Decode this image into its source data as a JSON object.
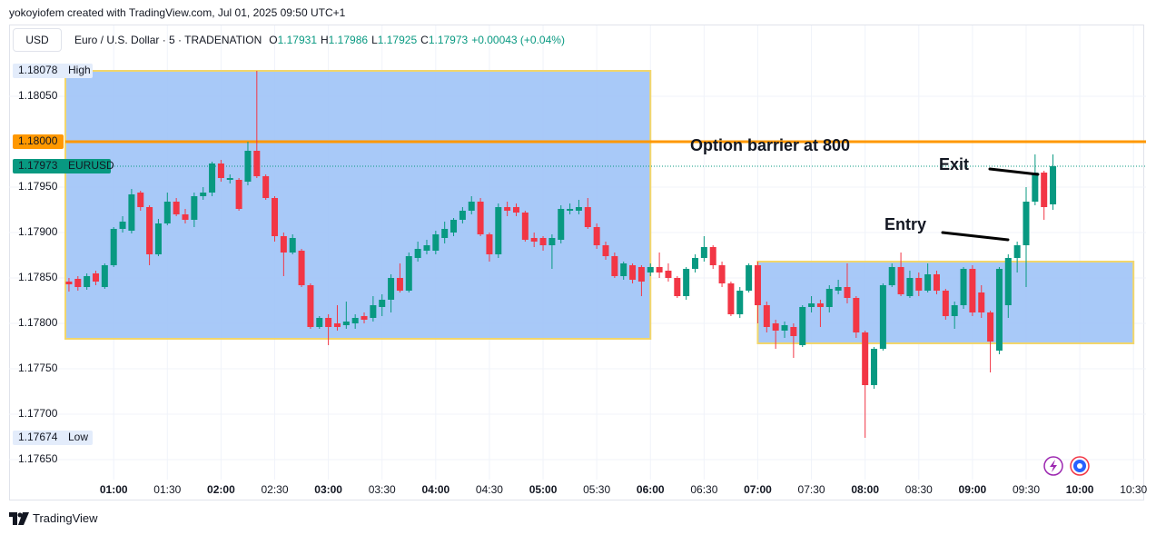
{
  "header": {
    "attribution": "yokoyiofem created with TradingView.com, Jul 01, 2025 09:50 UTC+1"
  },
  "toolbar": {
    "currency": "USD",
    "symbol": "Euro / U.S. Dollar · 5 · TRADENATION",
    "ohlc": [
      {
        "key": "O",
        "value": "1.17931"
      },
      {
        "key": "H",
        "value": "1.17986"
      },
      {
        "key": "L",
        "value": "1.17925"
      },
      {
        "key": "C",
        "value": "1.17973"
      }
    ],
    "change": "+0.00043 (+0.04%)"
  },
  "chart_data": {
    "type": "candlestick",
    "x": [
      35,
      40,
      45,
      50,
      55,
      60,
      65,
      70,
      75,
      80,
      85,
      90,
      95,
      100,
      105,
      110,
      115,
      120,
      125,
      130,
      135,
      140,
      145,
      150,
      155,
      160,
      165,
      170,
      175,
      180,
      185,
      190,
      195,
      200,
      205,
      210,
      215,
      220,
      225,
      230,
      235,
      240,
      245,
      250,
      255,
      260,
      265,
      270,
      275,
      280,
      285,
      290,
      295,
      300,
      305,
      310,
      315,
      320,
      325,
      330,
      335,
      340,
      345,
      350,
      355,
      360,
      365,
      370,
      375,
      380,
      385,
      390,
      395,
      400,
      405,
      410,
      415,
      420,
      425,
      430,
      435,
      440,
      445,
      450,
      455,
      460,
      465,
      470,
      475,
      480,
      485,
      490,
      495,
      500,
      505,
      510,
      515,
      520,
      525,
      530,
      535,
      540,
      545,
      550,
      555,
      560,
      565,
      570,
      575,
      580,
      585
    ],
    "series": [
      {
        "name": "EURUSD",
        "open": [
          1.17846,
          1.17849,
          1.1784,
          1.17855,
          1.1784,
          1.17864,
          1.17904,
          1.17902,
          1.17944,
          1.17928,
          1.17876,
          1.1791,
          1.17934,
          1.1792,
          1.17914,
          1.1794,
          1.17944,
          1.17976,
          1.17958,
          1.17958,
          1.17956,
          1.1799,
          1.17962,
          1.17938,
          1.17896,
          1.17878,
          1.1788,
          1.17842,
          1.17796,
          1.17806,
          1.178,
          1.17798,
          1.178,
          1.17808,
          1.17806,
          1.17818,
          1.17826,
          1.1785,
          1.17836,
          1.17872,
          1.1788,
          1.1788,
          1.17894,
          1.179,
          1.17914,
          1.17924,
          1.17934,
          1.17898,
          1.17876,
          1.17928,
          1.17928,
          1.17922,
          1.17894,
          1.17894,
          1.17886,
          1.17892,
          1.17924,
          1.17924,
          1.17928,
          1.17906,
          1.17886,
          1.17874,
          1.17852,
          1.17864,
          1.17862,
          1.17856,
          1.17862,
          1.17858,
          1.1785,
          1.1783,
          1.1786,
          1.17872,
          1.17884,
          1.17864,
          1.17844,
          1.1781,
          1.17836,
          1.17864,
          1.1782,
          1.178,
          1.17792,
          1.17796,
          1.17776,
          1.17818,
          1.17822,
          1.17818,
          1.17836,
          1.1784,
          1.17828,
          1.1779,
          1.17732,
          1.17772,
          1.17842,
          1.17862,
          1.1783,
          1.1785,
          1.17836,
          1.17854,
          1.17836,
          1.17808,
          1.1782,
          1.1786,
          1.17834,
          1.17812,
          1.1777,
          1.1782,
          1.17872,
          1.17886,
          1.17934,
          1.17966,
          1.17931
        ],
        "high": [
          1.1785,
          1.17852,
          1.17855,
          1.17858,
          1.17866,
          1.17906,
          1.17918,
          1.17948,
          1.17946,
          1.1793,
          1.17915,
          1.17944,
          1.17938,
          1.17926,
          1.17944,
          1.1795,
          1.17978,
          1.1798,
          1.17964,
          1.1796,
          1.18,
          1.18078,
          1.17964,
          1.1794,
          1.179,
          1.17898,
          1.17882,
          1.17844,
          1.17808,
          1.1781,
          1.1782,
          1.17824,
          1.1781,
          1.17812,
          1.1783,
          1.17832,
          1.17854,
          1.17866,
          1.17878,
          1.1789,
          1.17892,
          1.17902,
          1.17912,
          1.17916,
          1.17928,
          1.1794,
          1.17938,
          1.179,
          1.17932,
          1.17934,
          1.17932,
          1.17924,
          1.179,
          1.17896,
          1.17898,
          1.1793,
          1.17932,
          1.17936,
          1.17938,
          1.1791,
          1.1789,
          1.17878,
          1.17868,
          1.17866,
          1.17864,
          1.17866,
          1.17878,
          1.17866,
          1.17852,
          1.17862,
          1.17876,
          1.17896,
          1.17886,
          1.17868,
          1.17846,
          1.1784,
          1.17866,
          1.17868,
          1.17824,
          1.17804,
          1.17802,
          1.178,
          1.1782,
          1.1783,
          1.17826,
          1.17842,
          1.17848,
          1.17866,
          1.1783,
          1.17792,
          1.17774,
          1.17844,
          1.17866,
          1.17878,
          1.17858,
          1.17856,
          1.17866,
          1.17858,
          1.17838,
          1.17824,
          1.17862,
          1.17864,
          1.17842,
          1.17814,
          1.17862,
          1.17876,
          1.1789,
          1.1795,
          1.17986,
          1.17968,
          1.17986
        ],
        "low": [
          1.17835,
          1.17836,
          1.17837,
          1.17842,
          1.17838,
          1.17862,
          1.179,
          1.17899,
          1.17924,
          1.17864,
          1.17874,
          1.17908,
          1.17918,
          1.1791,
          1.17906,
          1.17936,
          1.1794,
          1.17956,
          1.17954,
          1.17924,
          1.17952,
          1.1796,
          1.17936,
          1.1789,
          1.17852,
          1.17876,
          1.1784,
          1.17794,
          1.17794,
          1.17776,
          1.17792,
          1.17794,
          1.17794,
          1.178,
          1.17802,
          1.17808,
          1.17812,
          1.17834,
          1.17834,
          1.17868,
          1.17876,
          1.17876,
          1.17888,
          1.17896,
          1.1791,
          1.1792,
          1.17896,
          1.17868,
          1.17872,
          1.17918,
          1.17918,
          1.1789,
          1.17884,
          1.1788,
          1.1786,
          1.17888,
          1.1792,
          1.1792,
          1.17904,
          1.17882,
          1.1787,
          1.1785,
          1.17848,
          1.17844,
          1.1783,
          1.17852,
          1.1785,
          1.17846,
          1.17828,
          1.17826,
          1.17856,
          1.17868,
          1.1786,
          1.1784,
          1.17808,
          1.17806,
          1.17834,
          1.178,
          1.1779,
          1.17772,
          1.17784,
          1.17762,
          1.17774,
          1.17812,
          1.17796,
          1.17812,
          1.17832,
          1.17822,
          1.17784,
          1.17674,
          1.17728,
          1.1777,
          1.1784,
          1.1783,
          1.17828,
          1.1783,
          1.17834,
          1.17832,
          1.17804,
          1.17794,
          1.17816,
          1.17808,
          1.17806,
          1.17746,
          1.17766,
          1.17806,
          1.17856,
          1.1784,
          1.1793,
          1.17914,
          1.17925
        ],
        "close": [
          1.17843,
          1.1784,
          1.17852,
          1.17846,
          1.17864,
          1.17904,
          1.17912,
          1.17942,
          1.17928,
          1.17876,
          1.1791,
          1.17934,
          1.1792,
          1.17914,
          1.1794,
          1.17944,
          1.17976,
          1.1796,
          1.1796,
          1.17926,
          1.1799,
          1.17962,
          1.17938,
          1.17896,
          1.17878,
          1.17894,
          1.17842,
          1.17796,
          1.17806,
          1.17796,
          1.17796,
          1.17802,
          1.17806,
          1.17804,
          1.1782,
          1.17826,
          1.1785,
          1.17836,
          1.17874,
          1.17882,
          1.17886,
          1.17898,
          1.17904,
          1.17914,
          1.17924,
          1.17934,
          1.17898,
          1.17876,
          1.17928,
          1.17924,
          1.17922,
          1.17892,
          1.1789,
          1.17886,
          1.17894,
          1.17926,
          1.17926,
          1.17928,
          1.17906,
          1.17886,
          1.17874,
          1.17852,
          1.17866,
          1.17848,
          1.17846,
          1.17862,
          1.17856,
          1.1785,
          1.1783,
          1.1786,
          1.17872,
          1.17884,
          1.17864,
          1.17844,
          1.1781,
          1.17836,
          1.17864,
          1.1782,
          1.17796,
          1.17792,
          1.17798,
          1.17786,
          1.17818,
          1.17822,
          1.17818,
          1.17838,
          1.1784,
          1.17828,
          1.1779,
          1.17732,
          1.17772,
          1.17842,
          1.17862,
          1.17832,
          1.1785,
          1.17836,
          1.17854,
          1.17836,
          1.17808,
          1.1782,
          1.1786,
          1.17812,
          1.17812,
          1.1778,
          1.1786,
          1.17872,
          1.17886,
          1.17934,
          1.17966,
          1.17928,
          1.17973
        ]
      }
    ],
    "up_color": "#089981",
    "down_color": "#f23645",
    "xlim": [
      33,
      637
    ],
    "ylim": [
      1.17631,
      1.18096
    ],
    "xticks": [
      {
        "value": 60,
        "label": "01:00"
      },
      {
        "value": 90,
        "label": "01:30"
      },
      {
        "value": 120,
        "label": "02:00"
      },
      {
        "value": 150,
        "label": "02:30"
      },
      {
        "value": 180,
        "label": "03:00"
      },
      {
        "value": 210,
        "label": "03:30"
      },
      {
        "value": 240,
        "label": "04:00"
      },
      {
        "value": 270,
        "label": "04:30"
      },
      {
        "value": 300,
        "label": "05:00"
      },
      {
        "value": 330,
        "label": "05:30"
      },
      {
        "value": 360,
        "label": "06:00"
      },
      {
        "value": 390,
        "label": "06:30"
      },
      {
        "value": 420,
        "label": "07:00"
      },
      {
        "value": 450,
        "label": "07:30"
      },
      {
        "value": 480,
        "label": "08:00"
      },
      {
        "value": 510,
        "label": "08:30"
      },
      {
        "value": 540,
        "label": "09:00"
      },
      {
        "value": 570,
        "label": "09:30"
      },
      {
        "value": 600,
        "label": "10:00"
      },
      {
        "value": 630,
        "label": "10:30"
      }
    ],
    "yticks": [
      {
        "value": 1.1805,
        "label": "1.18050"
      },
      {
        "value": 1.1795,
        "label": "1.17950"
      },
      {
        "value": 1.179,
        "label": "1.17900"
      },
      {
        "value": 1.1785,
        "label": "1.17850"
      },
      {
        "value": 1.178,
        "label": "1.17800"
      },
      {
        "value": 1.1775,
        "label": "1.17750"
      },
      {
        "value": 1.177,
        "label": "1.17700"
      },
      {
        "value": 1.1765,
        "label": "1.17650"
      }
    ],
    "grid": true,
    "zones": [
      {
        "x": [
          33,
          360
        ],
        "y": [
          1.17783,
          1.18078
        ],
        "color": "#9fc3f7",
        "border_color": "#f2d66b"
      },
      {
        "x": [
          420,
          630
        ],
        "y": [
          1.17778,
          1.17868
        ],
        "color": "#9fc3f7",
        "border_color": "#f2d66b"
      }
    ],
    "hlines": [
      {
        "value": 1.18,
        "label": "1.18000",
        "color": "#ff9800",
        "text": "Option barrier at 800"
      }
    ],
    "price_badges": [
      {
        "value": 1.18078,
        "text": "High"
      },
      {
        "value": 1.17674,
        "text": "Low"
      }
    ],
    "last_price": {
      "value": 1.17973,
      "color": "#089981"
    },
    "annotations": [
      {
        "text": "Exit"
      },
      {
        "text": "Entry"
      }
    ]
  },
  "footer": {
    "brand": "TradingView"
  }
}
